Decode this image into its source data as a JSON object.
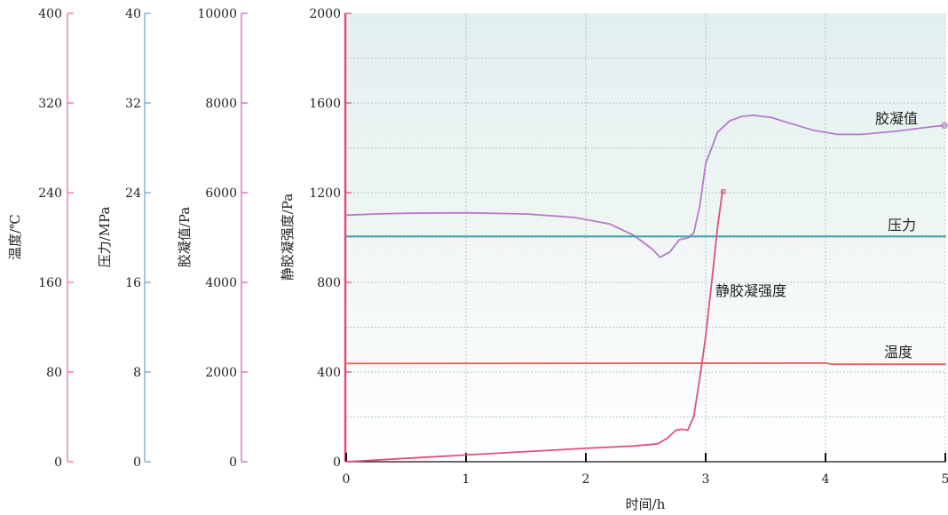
{
  "chart_data": {
    "type": "line",
    "xlabel": "时间/h",
    "xticks": [
      "0",
      "1",
      "2",
      "3",
      "4",
      "5"
    ],
    "xlim": [
      0,
      5
    ],
    "grid": true,
    "axes": [
      {
        "label": "温度/℃",
        "ticks": [
          "0",
          "80",
          "160",
          "240",
          "320",
          "400"
        ],
        "ylim": [
          0,
          400
        ],
        "color": "#e8758a"
      },
      {
        "label": "压力/MPa",
        "ticks": [
          "0",
          "8",
          "16",
          "24",
          "32",
          "40"
        ],
        "ylim": [
          0,
          40
        ],
        "color": "#7aa9cc"
      },
      {
        "label": "胶凝值/Pa",
        "ticks": [
          "0",
          "2000",
          "4000",
          "6000",
          "8000",
          "10000"
        ],
        "ylim": [
          0,
          10000
        ],
        "color": "#c66bbf"
      },
      {
        "label": "静胶凝强度/Pa",
        "ticks": [
          "0",
          "400",
          "800",
          "1200",
          "1600",
          "2000"
        ],
        "ylim": [
          0,
          2000
        ],
        "color": "#e0507a"
      }
    ],
    "series": [
      {
        "name": "胶凝值",
        "color": "#b779c9",
        "x": [
          0,
          0.25,
          0.5,
          1.0,
          1.5,
          1.9,
          2.2,
          2.4,
          2.55,
          2.62,
          2.7,
          2.78,
          2.85,
          2.9,
          2.95,
          3.0,
          3.1,
          3.2,
          3.3,
          3.4,
          3.55,
          3.7,
          3.9,
          4.1,
          4.3,
          4.6,
          4.9,
          5.0
        ],
        "y": [
          1100,
          1105,
          1108,
          1110,
          1105,
          1090,
          1060,
          1010,
          950,
          912,
          935,
          990,
          998,
          1020,
          1140,
          1330,
          1470,
          1520,
          1540,
          1545,
          1535,
          1510,
          1478,
          1460,
          1460,
          1475,
          1495,
          1500
        ]
      },
      {
        "name": "压力",
        "color": "#3fa0b3",
        "x": [
          0,
          5
        ],
        "y": [
          1005,
          1005
        ]
      },
      {
        "name": "温度",
        "color": "#e8615a",
        "x": [
          0,
          4.0,
          4.05,
          5
        ],
        "y": [
          438,
          440,
          435,
          435
        ]
      },
      {
        "name": "静胶凝强度",
        "color": "#e0507a",
        "x": [
          0,
          0.5,
          1.0,
          1.5,
          2.0,
          2.4,
          2.6,
          2.68,
          2.75,
          2.8,
          2.85,
          2.9,
          2.95,
          3.0,
          3.05,
          3.1,
          3.14
        ],
        "y": [
          0,
          15,
          30,
          45,
          60,
          70,
          80,
          105,
          140,
          145,
          140,
          200,
          370,
          560,
          800,
          1050,
          1205
        ]
      }
    ],
    "annotations": [
      "胶凝值",
      "压力",
      "静胶凝强度",
      "温度"
    ]
  }
}
